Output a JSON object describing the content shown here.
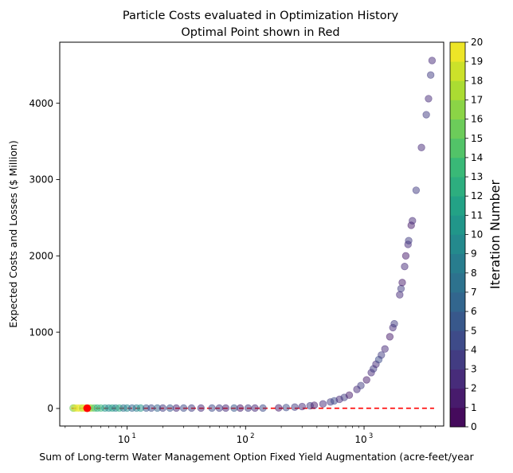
{
  "chart_data": {
    "type": "scatter",
    "title": "Particle Costs evaluated in Optimization History",
    "subtitle": "Optimal Point shown in Red",
    "xlabel": "Sum of Long-term Water Management Option Fixed Yield Augmentation (acre-feet/year",
    "ylabel": "Expected Costs and Losses ($ Million)",
    "x_scale": "log",
    "xlim": [
      2.7,
      4700
    ],
    "ylim": [
      -230,
      4800
    ],
    "x_ticks": [
      {
        "value": 10,
        "base": "10",
        "exp": "1"
      },
      {
        "value": 100,
        "base": "10",
        "exp": "2"
      },
      {
        "value": 1000,
        "base": "10",
        "exp": "3"
      }
    ],
    "y_ticks": [
      0,
      1000,
      2000,
      3000,
      4000
    ],
    "colorbar": {
      "label": "Iteration Number",
      "min": 0,
      "max": 20,
      "ticks": [
        "0",
        "1",
        "2",
        "3",
        "4",
        "5",
        "6",
        "7",
        "8",
        "9",
        "10",
        "11",
        "12",
        "13",
        "14",
        "15",
        "16",
        "17",
        "18",
        "19",
        "20"
      ]
    },
    "colors": {
      "optimal_point": "#ff0000",
      "reference_line": "#ff0000"
    },
    "optimal_point": {
      "x": 4.6,
      "y": 3
    },
    "reference_line": {
      "y": 3,
      "x_start": 3.4,
      "x_end": 3900,
      "style": "dashed"
    },
    "point_alpha": 0.5,
    "points": [
      {
        "x": 3.5,
        "y": 5,
        "iter": 15
      },
      {
        "x": 3.6,
        "y": 5,
        "iter": 18
      },
      {
        "x": 3.8,
        "y": 5,
        "iter": 19
      },
      {
        "x": 4.0,
        "y": 5,
        "iter": 20
      },
      {
        "x": 4.2,
        "y": 5,
        "iter": 17
      },
      {
        "x": 4.4,
        "y": 5,
        "iter": 19
      },
      {
        "x": 4.8,
        "y": 5,
        "iter": 18
      },
      {
        "x": 5.0,
        "y": 5,
        "iter": 16
      },
      {
        "x": 5.3,
        "y": 5,
        "iter": 14
      },
      {
        "x": 5.6,
        "y": 5,
        "iter": 12
      },
      {
        "x": 6.0,
        "y": 5,
        "iter": 13
      },
      {
        "x": 6.5,
        "y": 5,
        "iter": 10
      },
      {
        "x": 7.0,
        "y": 5,
        "iter": 9
      },
      {
        "x": 7.5,
        "y": 5,
        "iter": 11
      },
      {
        "x": 8.0,
        "y": 5,
        "iter": 8
      },
      {
        "x": 8.6,
        "y": 5,
        "iter": 12
      },
      {
        "x": 9.3,
        "y": 5,
        "iter": 7
      },
      {
        "x": 10,
        "y": 5,
        "iter": 9
      },
      {
        "x": 11,
        "y": 5,
        "iter": 6
      },
      {
        "x": 12,
        "y": 5,
        "iter": 8
      },
      {
        "x": 13,
        "y": 5,
        "iter": 10
      },
      {
        "x": 14.5,
        "y": 5,
        "iter": 5
      },
      {
        "x": 16,
        "y": 5,
        "iter": 4
      },
      {
        "x": 18,
        "y": 5,
        "iter": 6
      },
      {
        "x": 20,
        "y": 5,
        "iter": 3
      },
      {
        "x": 23,
        "y": 5,
        "iter": 5
      },
      {
        "x": 26,
        "y": 5,
        "iter": 2
      },
      {
        "x": 30,
        "y": 5,
        "iter": 4
      },
      {
        "x": 35,
        "y": 5,
        "iter": 3
      },
      {
        "x": 42,
        "y": 5,
        "iter": 2
      },
      {
        "x": 52,
        "y": 5,
        "iter": 4
      },
      {
        "x": 60,
        "y": 5,
        "iter": 3
      },
      {
        "x": 68,
        "y": 5,
        "iter": 2
      },
      {
        "x": 80,
        "y": 5,
        "iter": 5
      },
      {
        "x": 90,
        "y": 5,
        "iter": 1
      },
      {
        "x": 105,
        "y": 5,
        "iter": 3
      },
      {
        "x": 120,
        "y": 5,
        "iter": 2
      },
      {
        "x": 140,
        "y": 5,
        "iter": 4
      },
      {
        "x": 190,
        "y": 8,
        "iter": 1
      },
      {
        "x": 220,
        "y": 12,
        "iter": 4
      },
      {
        "x": 260,
        "y": 18,
        "iter": 3
      },
      {
        "x": 300,
        "y": 25,
        "iter": 2
      },
      {
        "x": 350,
        "y": 35,
        "iter": 3
      },
      {
        "x": 380,
        "y": 42,
        "iter": 1
      },
      {
        "x": 450,
        "y": 60,
        "iter": 2
      },
      {
        "x": 520,
        "y": 85,
        "iter": 3
      },
      {
        "x": 560,
        "y": 100,
        "iter": 4
      },
      {
        "x": 620,
        "y": 120,
        "iter": 2
      },
      {
        "x": 680,
        "y": 145,
        "iter": 3
      },
      {
        "x": 750,
        "y": 175,
        "iter": 1
      },
      {
        "x": 870,
        "y": 250,
        "iter": 2
      },
      {
        "x": 940,
        "y": 300,
        "iter": 3
      },
      {
        "x": 1050,
        "y": 375,
        "iter": 1
      },
      {
        "x": 1150,
        "y": 470,
        "iter": 2
      },
      {
        "x": 1200,
        "y": 520,
        "iter": 3
      },
      {
        "x": 1260,
        "y": 580,
        "iter": 2
      },
      {
        "x": 1330,
        "y": 640,
        "iter": 4
      },
      {
        "x": 1400,
        "y": 700,
        "iter": 3
      },
      {
        "x": 1500,
        "y": 780,
        "iter": 2
      },
      {
        "x": 1650,
        "y": 940,
        "iter": 1
      },
      {
        "x": 1750,
        "y": 1060,
        "iter": 2
      },
      {
        "x": 1800,
        "y": 1110,
        "iter": 3
      },
      {
        "x": 2000,
        "y": 1490,
        "iter": 2
      },
      {
        "x": 2050,
        "y": 1570,
        "iter": 3
      },
      {
        "x": 2100,
        "y": 1650,
        "iter": 1
      },
      {
        "x": 2200,
        "y": 1860,
        "iter": 2
      },
      {
        "x": 2250,
        "y": 2000,
        "iter": 1
      },
      {
        "x": 2350,
        "y": 2150,
        "iter": 2
      },
      {
        "x": 2380,
        "y": 2200,
        "iter": 3
      },
      {
        "x": 2500,
        "y": 2400,
        "iter": 1
      },
      {
        "x": 2560,
        "y": 2460,
        "iter": 2
      },
      {
        "x": 2750,
        "y": 2860,
        "iter": 3
      },
      {
        "x": 3050,
        "y": 3420,
        "iter": 2
      },
      {
        "x": 3350,
        "y": 3850,
        "iter": 3
      },
      {
        "x": 3500,
        "y": 4060,
        "iter": 2
      },
      {
        "x": 3650,
        "y": 4370,
        "iter": 3
      },
      {
        "x": 3750,
        "y": 4560,
        "iter": 2
      }
    ]
  }
}
